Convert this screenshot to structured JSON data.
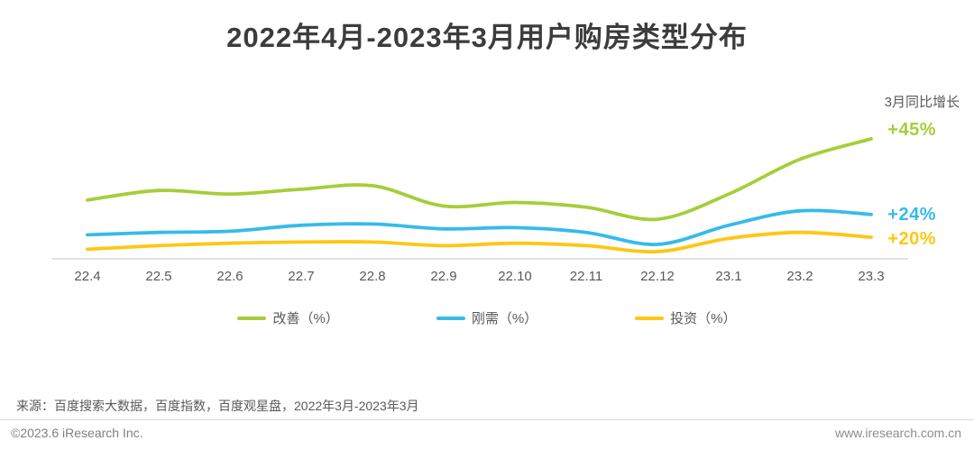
{
  "title": "2022年4月-2023年3月用户购房类型分布",
  "chart_data": {
    "type": "line",
    "title": "2022年4月-2023年3月用户购房类型分布",
    "categories": [
      "22.4",
      "22.5",
      "22.6",
      "22.7",
      "22.8",
      "22.9",
      "22.10",
      "22.11",
      "22.12",
      "23.1",
      "23.2",
      "23.3"
    ],
    "series": [
      {
        "name": "改善（%）",
        "color": "#a5ce39",
        "values": [
          24.5,
          28.5,
          27,
          29,
          30.5,
          22,
          23.5,
          21.5,
          16.5,
          27,
          41.5,
          50
        ]
      },
      {
        "name": "刚需（%）",
        "color": "#36bbea",
        "values": [
          10,
          11,
          11.5,
          14,
          14.5,
          12.5,
          13,
          11,
          6,
          14,
          20,
          18.5
        ]
      },
      {
        "name": "投资（%）",
        "color": "#ffc613",
        "values": [
          4,
          5.5,
          6.5,
          7,
          7,
          5.5,
          6.5,
          5.5,
          3,
          8.5,
          11,
          9
        ]
      }
    ],
    "annotation_title": "3月同比增长",
    "annotations": [
      {
        "label": "+45%",
        "color": "#a5ce39"
      },
      {
        "label": "+24%",
        "color": "#36bbea"
      },
      {
        "label": "+20%",
        "color": "#ffc613"
      }
    ],
    "ylim": [
      0,
      55
    ],
    "y_axis_labels_shown": false,
    "grid": false,
    "legend_position": "bottom",
    "axis_color": "#d9d9d9"
  },
  "footer": {
    "source": "来源：百度搜索大数据，百度指数，百度观星盘，2022年3月-2023年3月",
    "copyright": "©2023.6 iResearch Inc.",
    "website": "www.iresearch.com.cn"
  }
}
